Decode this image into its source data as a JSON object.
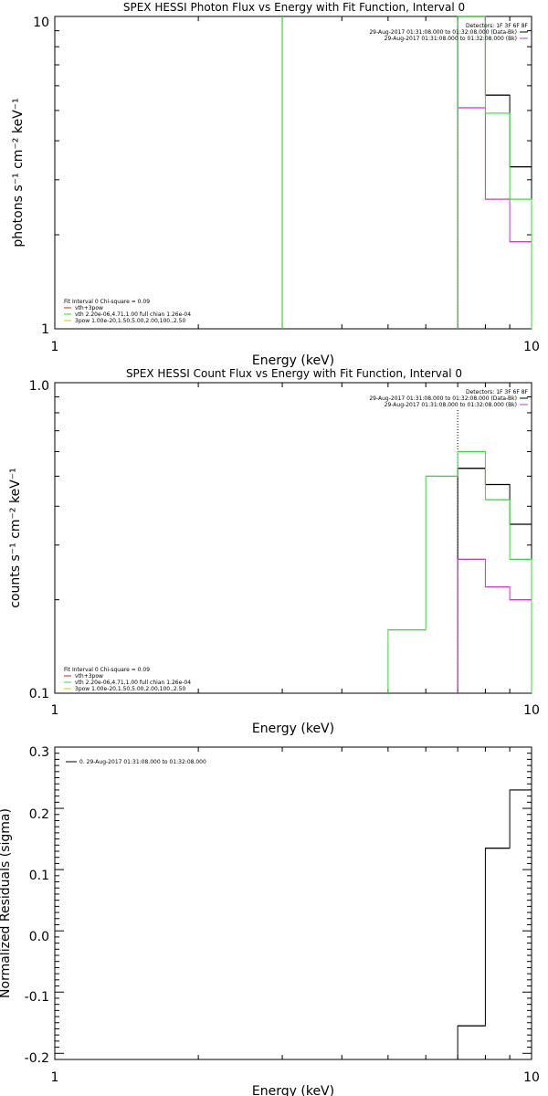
{
  "colors": {
    "black": "#000000",
    "magenta": "#cc33cc",
    "green": "#33dd33",
    "red": "#cc2222",
    "yellow": "#cccc00",
    "background": "#ffffff"
  },
  "chart_data": [
    {
      "type": "line",
      "title": "SPEX HESSI Photon Flux vs Energy with Fit Function, Interval 0",
      "xlabel": "Energy (keV)",
      "ylabel": "photons s⁻¹ cm⁻² keV⁻¹",
      "x_scale": "log",
      "y_scale": "log",
      "xlim": [
        1,
        10
      ],
      "ylim": [
        1,
        10
      ],
      "x_tick_labels": [
        "1",
        "10"
      ],
      "y_tick_labels": [
        "1",
        "10"
      ],
      "detectors_label": "Detectors: 1F 3F 6F 8F",
      "time_ranges": [
        {
          "text": "29-Aug-2017 01:31:08.000 to 01:32:08.000 (Data-Bk)",
          "color": "black"
        },
        {
          "text": "29-Aug-2017 01:31:08.000 to 01:32:08.000 (Bk)",
          "color": "magenta"
        }
      ],
      "fit_legend": [
        {
          "text": "Fit Interval 0   Chi-square = 0.09",
          "color": "black"
        },
        {
          "text": "vth+3pow",
          "color": "red"
        },
        {
          "text": "vth 2.20e-06,4.71,1.00  full chian 1.26e-04",
          "color": "green"
        },
        {
          "text": "3pow 1.00e-20,1.50,5.00,2.00,100.,2.50",
          "color": "yellow"
        }
      ],
      "series": [
        {
          "name": "Data-Bk",
          "color": "black",
          "edges": [
            7,
            8,
            9,
            10
          ],
          "values": [
            10,
            5.6,
            3.3
          ]
        },
        {
          "name": "Bk",
          "color": "magenta",
          "edges": [
            7,
            8,
            9,
            10
          ],
          "values": [
            5.1,
            2.6,
            1.9
          ]
        },
        {
          "name": "vth 2.20e-06,4.71,1.00",
          "color": "green",
          "edges": [
            7,
            8,
            9,
            10
          ],
          "values": [
            10,
            4.9,
            2.6
          ],
          "vertical_line_at": 3
        }
      ]
    },
    {
      "type": "line",
      "title": "SPEX HESSI Count Flux vs Energy with Fit Function, Interval 0",
      "xlabel": "Energy (keV)",
      "ylabel": "counts s⁻¹ cm⁻² keV⁻¹",
      "x_scale": "log",
      "y_scale": "log",
      "xlim": [
        1,
        10
      ],
      "ylim": [
        0.1,
        1.0
      ],
      "x_tick_labels": [
        "1",
        "10"
      ],
      "y_tick_labels": [
        "0.1",
        "1.0"
      ],
      "detectors_label": "Detectors: 1F 3F 6F 8F",
      "time_ranges": [
        {
          "text": "29-Aug-2017 01:31:08.000 to 01:32:08.000 (Data-Bk)",
          "color": "black"
        },
        {
          "text": "29-Aug-2017 01:31:08.000 to 01:32:08.000 (Bk)",
          "color": "magenta"
        }
      ],
      "fit_legend": [
        {
          "text": "Fit Interval 0   Chi-square = 0.09",
          "color": "black"
        },
        {
          "text": "vth+3pow",
          "color": "red"
        },
        {
          "text": "vth 2.20e-06,4.71,1.00  full chian 1.26e-04",
          "color": "green"
        },
        {
          "text": "3pow 1.00e-20,1.50,5.00,2.00,100.,2.50",
          "color": "yellow"
        }
      ],
      "series": [
        {
          "name": "Data-Bk",
          "color": "black",
          "edges": [
            7,
            8,
            9,
            10
          ],
          "values": [
            0.53,
            0.47,
            0.35
          ]
        },
        {
          "name": "Bk",
          "color": "magenta",
          "edges": [
            7,
            8,
            9,
            10
          ],
          "values": [
            0.27,
            0.22,
            0.2
          ]
        },
        {
          "name": "vth 2.20e-06,4.71,1.00",
          "color": "green",
          "edges": [
            5,
            6,
            7,
            8,
            9,
            10
          ],
          "values": [
            0.16,
            0.5,
            0.6,
            0.42,
            0.27
          ]
        }
      ]
    },
    {
      "type": "line",
      "title": "",
      "xlabel": "Energy (keV)",
      "ylabel": "Normalized Residuals (sigma)",
      "x_scale": "log",
      "y_scale": "linear",
      "xlim": [
        1,
        10
      ],
      "ylim": [
        -0.21,
        0.3
      ],
      "x_tick_labels": [
        "1",
        "10"
      ],
      "y_ticks": [
        -0.2,
        -0.1,
        0.0,
        0.1,
        0.2,
        0.3
      ],
      "y_tick_labels": [
        "-0.2",
        "-0.1",
        "0.0",
        "0.1",
        "0.2",
        "0.3"
      ],
      "legend": [
        {
          "text": "0. 29-Aug-2017 01:31:08.000 to 01:32:08.000",
          "color": "black"
        }
      ],
      "series": [
        {
          "name": "0",
          "color": "black",
          "edges": [
            7,
            8,
            9,
            10
          ],
          "values": [
            -0.155,
            0.135,
            0.23
          ]
        }
      ]
    }
  ]
}
